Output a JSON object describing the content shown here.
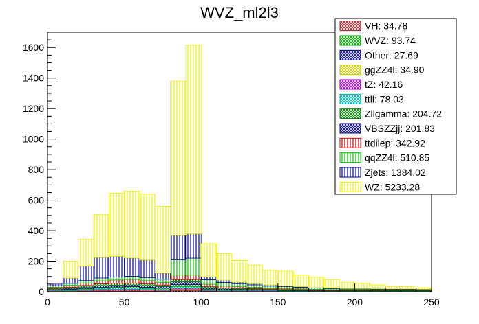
{
  "chart_data": {
    "type": "bar",
    "stacked": true,
    "title": "WVZ_ml2l3",
    "xlabel": "",
    "ylabel": "",
    "xlim": [
      0,
      250
    ],
    "ylim": [
      0,
      1700
    ],
    "bin_width": 10,
    "x_ticks": [
      0,
      50,
      100,
      150,
      200,
      250
    ],
    "x_tick_labels": [
      "0",
      "50",
      "100",
      "150",
      "200",
      "250"
    ],
    "y_ticks": [
      0,
      200,
      400,
      600,
      800,
      1000,
      1200,
      1400,
      1600
    ],
    "y_tick_labels": [
      "0",
      "200",
      "400",
      "600",
      "800",
      "1000",
      "1200",
      "1400",
      "1600"
    ],
    "legend_position": "top-right",
    "bin_edges": [
      0,
      10,
      20,
      30,
      40,
      50,
      60,
      70,
      80,
      90,
      100,
      110,
      120,
      130,
      140,
      150,
      160,
      170,
      180,
      190,
      200,
      210,
      220,
      230,
      240,
      250
    ],
    "total": [
      50,
      200,
      345,
      505,
      645,
      660,
      640,
      560,
      1380,
      1615,
      315,
      250,
      205,
      175,
      140,
      135,
      110,
      95,
      80,
      60,
      55,
      45,
      35,
      35,
      25
    ],
    "series": [
      {
        "name": "Other",
        "legend": "Other: 27.69",
        "color": "#000080",
        "pattern": "cross",
        "values": [
          2,
          2,
          3,
          5,
          4,
          5,
          4,
          3,
          6,
          6,
          3,
          2,
          2,
          2,
          2,
          1,
          1,
          1,
          1,
          1,
          1,
          1,
          1,
          1,
          1
        ]
      },
      {
        "name": "VH",
        "legend": "VH: 34.78",
        "color": "#a0282f",
        "pattern": "cross",
        "values": [
          3,
          3,
          4,
          5,
          6,
          6,
          5,
          4,
          8,
          8,
          3,
          2,
          2,
          2,
          2,
          1,
          1,
          1,
          1,
          1,
          1,
          1,
          1,
          1,
          1
        ]
      },
      {
        "name": "ggZZ4l",
        "legend": "ggZZ4l: 34.90",
        "color": "#c8c800",
        "pattern": "cross",
        "values": [
          1,
          1,
          2,
          2,
          2,
          2,
          2,
          2,
          4,
          4,
          2,
          1,
          1,
          1,
          1,
          1,
          1,
          1,
          1,
          1,
          1,
          1,
          1,
          1,
          1
        ]
      },
      {
        "name": "tZ",
        "legend": "tZ: 42.16",
        "color": "#a000c8",
        "pattern": "cross",
        "values": [
          1,
          2,
          3,
          4,
          4,
          4,
          4,
          3,
          6,
          6,
          3,
          2,
          2,
          2,
          2,
          1,
          1,
          1,
          1,
          1,
          1,
          1,
          1,
          1,
          1
        ]
      },
      {
        "name": "ttll",
        "legend": "ttll: 78.03",
        "color": "#00b4b4",
        "pattern": "cross",
        "values": [
          3,
          4,
          5,
          7,
          8,
          8,
          7,
          6,
          9,
          9,
          4,
          3,
          3,
          2,
          2,
          2,
          2,
          1,
          1,
          1,
          1,
          1,
          1,
          1,
          1
        ]
      },
      {
        "name": "WVZ",
        "legend": "WVZ: 93.74",
        "color": "#00a000",
        "pattern": "cross",
        "values": [
          2,
          3,
          5,
          6,
          7,
          8,
          7,
          6,
          14,
          14,
          4,
          3,
          3,
          2,
          2,
          2,
          2,
          1,
          1,
          1,
          1,
          1,
          1,
          1,
          1
        ]
      },
      {
        "name": "VBSZZjj",
        "legend": "VBSZZjj: 201.83",
        "color": "#000080",
        "pattern": "cross",
        "values": [
          5,
          7,
          9,
          11,
          12,
          12,
          11,
          10,
          18,
          18,
          8,
          6,
          5,
          5,
          4,
          3,
          3,
          3,
          2,
          2,
          2,
          2,
          2,
          2,
          2
        ]
      },
      {
        "name": "Zllgamma",
        "legend": "Zllgamma: 204.72",
        "color": "#008000",
        "pattern": "cross",
        "values": [
          5,
          8,
          10,
          12,
          12,
          12,
          11,
          10,
          15,
          15,
          8,
          6,
          5,
          5,
          4,
          4,
          3,
          3,
          2,
          2,
          2,
          2,
          2,
          2,
          2
        ]
      },
      {
        "name": "ttdilep",
        "legend": "ttdilep: 342.92",
        "color": "#d00000",
        "pattern": "vlines",
        "values": [
          8,
          12,
          16,
          20,
          22,
          24,
          22,
          18,
          30,
          30,
          14,
          12,
          10,
          8,
          6,
          6,
          5,
          4,
          4,
          3,
          3,
          3,
          2,
          2,
          2
        ]
      },
      {
        "name": "qqZZ4l",
        "legend": "qqZZ4l: 510.85",
        "color": "#00c000",
        "pattern": "vlines",
        "values": [
          10,
          13,
          16,
          18,
          20,
          20,
          20,
          20,
          100,
          110,
          30,
          24,
          20,
          16,
          12,
          12,
          10,
          9,
          7,
          5,
          5,
          4,
          4,
          4,
          3
        ]
      },
      {
        "name": "Zjets",
        "legend": "Zjets: 1384.02",
        "color": "#0000a0",
        "pattern": "vlines",
        "values": [
          10,
          35,
          95,
          135,
          135,
          120,
          115,
          40,
          160,
          160,
          20,
          15,
          10,
          8,
          8,
          6,
          5,
          4,
          3,
          3,
          3,
          3,
          3,
          3,
          2
        ]
      },
      {
        "name": "WZ",
        "legend": "WZ: 5233.28",
        "color": "#f0f000",
        "pattern": "vlines",
        "values": [
          0,
          110,
          177,
          280,
          413,
          439,
          432,
          438,
          1010,
          1235,
          216,
          174,
          142,
          122,
          95,
          96,
          76,
          66,
          55,
          39,
          34,
          25,
          16,
          16,
          9
        ]
      }
    ],
    "legend_order": [
      "VH",
      "WVZ",
      "Other",
      "ggZZ4l",
      "tZ",
      "ttll",
      "Zllgamma",
      "VBSZZjj",
      "ttdilep",
      "qqZZ4l",
      "Zjets",
      "WZ"
    ]
  }
}
